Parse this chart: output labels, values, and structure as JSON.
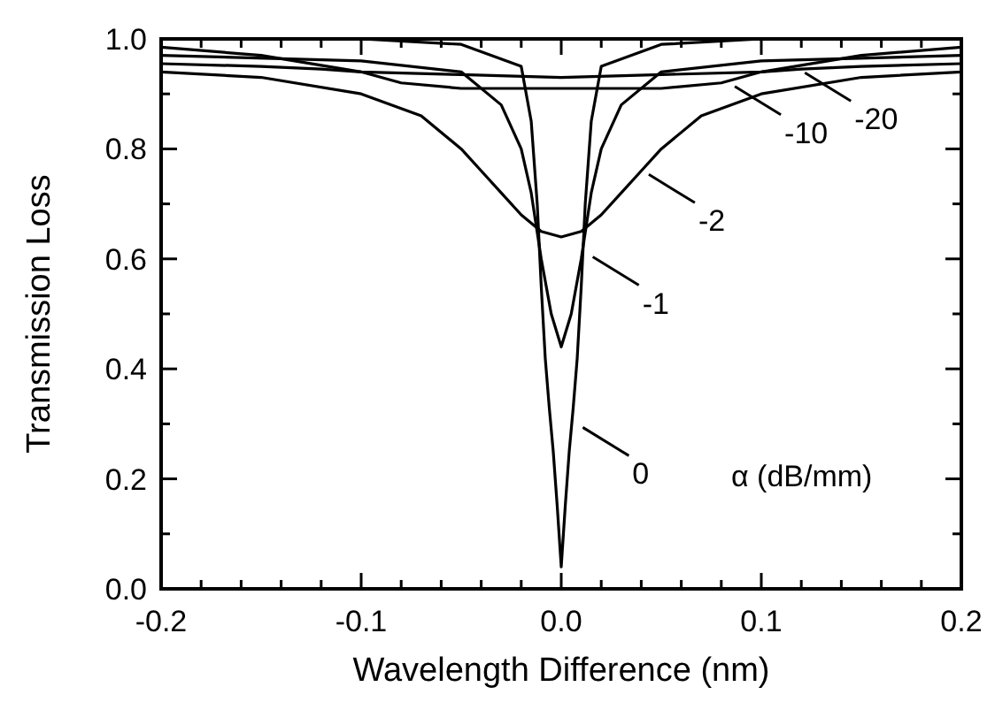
{
  "chart_data": {
    "type": "line",
    "xlabel": "Wavelength Difference (nm)",
    "ylabel": "Transmission Loss",
    "xlim": [
      -0.2,
      0.2
    ],
    "ylim": [
      0,
      1.0
    ],
    "xticks": [
      {
        "value": -0.2,
        "label": "-0.2"
      },
      {
        "value": -0.18,
        "label": null
      },
      {
        "value": -0.16,
        "label": null
      },
      {
        "value": -0.14,
        "label": null
      },
      {
        "value": -0.12,
        "label": null
      },
      {
        "value": -0.1,
        "label": "-0.1"
      },
      {
        "value": -0.08,
        "label": null
      },
      {
        "value": -0.06,
        "label": null
      },
      {
        "value": -0.04,
        "label": null
      },
      {
        "value": -0.02,
        "label": null
      },
      {
        "value": 0,
        "label": "0.0"
      },
      {
        "value": 0.02,
        "label": null
      },
      {
        "value": 0.04,
        "label": null
      },
      {
        "value": 0.06,
        "label": null
      },
      {
        "value": 0.08,
        "label": null
      },
      {
        "value": 0.1,
        "label": "0.1"
      },
      {
        "value": 0.12,
        "label": null
      },
      {
        "value": 0.14,
        "label": null
      },
      {
        "value": 0.16,
        "label": null
      },
      {
        "value": 0.18,
        "label": null
      },
      {
        "value": 0.2,
        "label": "0.2"
      }
    ],
    "yticks": [
      {
        "value": 0,
        "label": "0.0"
      },
      {
        "value": 0.1,
        "label": null
      },
      0.2,
      {
        "value": 0.3,
        "label": null
      },
      0.4,
      {
        "value": 0.5,
        "label": null
      },
      0.6,
      {
        "value": 0.7,
        "label": null
      },
      0.8,
      {
        "value": 0.9,
        "label": null
      },
      {
        "value": 1.0,
        "label": "1.0"
      }
    ],
    "grid": false,
    "marker": "none",
    "line_style": "solid",
    "series": [
      {
        "color": "#000000",
        "x": [
          -0.2,
          -0.1,
          -0.05,
          -0.02,
          -0.015,
          -0.012,
          -0.01,
          -0.008,
          -0.006,
          -0.004,
          -0.002,
          0,
          0.002,
          0.004,
          0.006,
          0.008,
          0.01,
          0.012,
          0.015,
          0.02,
          0.05,
          0.1,
          0.2
        ],
        "values": [
          1.0,
          1.0,
          0.99,
          0.95,
          0.85,
          0.7,
          0.55,
          0.42,
          0.33,
          0.25,
          0.15,
          0.04,
          0.15,
          0.25,
          0.33,
          0.42,
          0.55,
          0.7,
          0.85,
          0.95,
          0.99,
          1.0,
          1.0
        ]
      },
      {
        "color": "#000000",
        "x": [
          -0.2,
          -0.1,
          -0.05,
          -0.03,
          -0.02,
          -0.015,
          -0.01,
          -0.005,
          0,
          0.005,
          0.01,
          0.015,
          0.02,
          0.03,
          0.05,
          0.1,
          0.2
        ],
        "values": [
          0.97,
          0.96,
          0.94,
          0.88,
          0.8,
          0.72,
          0.6,
          0.5,
          0.44,
          0.5,
          0.6,
          0.72,
          0.8,
          0.88,
          0.94,
          0.96,
          0.97
        ]
      },
      {
        "color": "#000000",
        "x": [
          -0.2,
          -0.15,
          -0.1,
          -0.07,
          -0.05,
          -0.04,
          -0.03,
          -0.02,
          -0.01,
          0,
          0.01,
          0.02,
          0.03,
          0.04,
          0.05,
          0.07,
          0.1,
          0.15,
          0.2
        ],
        "values": [
          0.94,
          0.93,
          0.9,
          0.86,
          0.8,
          0.76,
          0.72,
          0.68,
          0.65,
          0.64,
          0.65,
          0.68,
          0.72,
          0.76,
          0.8,
          0.86,
          0.9,
          0.93,
          0.94
        ]
      },
      {
        "color": "#000000",
        "x": [
          -0.2,
          -0.15,
          -0.1,
          -0.08,
          -0.05,
          0,
          0.05,
          0.08,
          0.1,
          0.15,
          0.2
        ],
        "values": [
          0.985,
          0.97,
          0.94,
          0.92,
          0.91,
          0.91,
          0.91,
          0.92,
          0.94,
          0.97,
          0.985
        ]
      },
      {
        "color": "#000000",
        "x": [
          -0.2,
          -0.15,
          -0.12,
          -0.1,
          -0.05,
          0,
          0.05,
          0.1,
          0.12,
          0.15,
          0.2
        ],
        "values": [
          0.955,
          0.95,
          0.945,
          0.94,
          0.935,
          0.93,
          0.935,
          0.94,
          0.945,
          0.95,
          0.955
        ]
      }
    ],
    "annotations": [
      {
        "text": "0",
        "x": 0.009,
        "y": 0.3
      },
      {
        "text": "-1",
        "x": 0.014,
        "y": 0.61
      },
      {
        "text": "-2",
        "x": 0.042,
        "y": 0.76
      },
      {
        "text": "-10",
        "x": 0.085,
        "y": 0.92
      },
      {
        "text": "-20",
        "x": 0.12,
        "y": 0.945
      },
      "α (dB/mm)"
    ]
  }
}
